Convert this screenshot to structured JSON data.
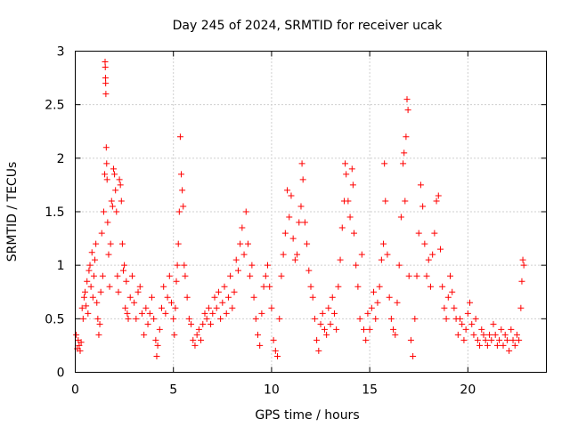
{
  "chart_data": {
    "type": "scatter",
    "title": "Day 245 of 2024, SRMTID for receiver ucak",
    "xlabel": "GPS time / hours",
    "ylabel": "SRMTID / TECUs",
    "xlim": [
      0,
      24
    ],
    "ylim": [
      0,
      3
    ],
    "x_ticks": [
      0,
      5,
      10,
      15,
      20
    ],
    "y_ticks": [
      0,
      0.5,
      1,
      1.5,
      2,
      2.5,
      3
    ],
    "x_tick_labels": [
      "0",
      "5",
      "10",
      "15",
      "20"
    ],
    "y_tick_labels": [
      "0",
      "0.5",
      "1",
      "1.5",
      "2",
      "2.5",
      "3"
    ],
    "grid": true,
    "marker": "+",
    "color": "#ff0000",
    "series": [
      {
        "name": "SRMTID",
        "points": [
          [
            0.05,
            0.35
          ],
          [
            0.1,
            0.22
          ],
          [
            0.15,
            0.3
          ],
          [
            0.2,
            0.25
          ],
          [
            0.25,
            0.2
          ],
          [
            0.3,
            0.28
          ],
          [
            0.35,
            0.6
          ],
          [
            0.4,
            0.5
          ],
          [
            0.45,
            0.7
          ],
          [
            0.5,
            0.75
          ],
          [
            0.55,
            0.62
          ],
          [
            0.6,
            0.85
          ],
          [
            0.65,
            0.55
          ],
          [
            0.7,
            0.95
          ],
          [
            0.75,
            1.0
          ],
          [
            0.8,
            0.8
          ],
          [
            0.85,
            1.12
          ],
          [
            0.9,
            0.7
          ],
          [
            0.95,
            0.9
          ],
          [
            1.0,
            1.05
          ],
          [
            1.05,
            1.2
          ],
          [
            1.1,
            0.65
          ],
          [
            1.15,
            0.5
          ],
          [
            1.2,
            0.35
          ],
          [
            1.25,
            0.45
          ],
          [
            1.3,
            0.75
          ],
          [
            1.35,
            1.3
          ],
          [
            1.4,
            0.9
          ],
          [
            1.45,
            1.5
          ],
          [
            1.5,
            1.85
          ],
          [
            1.52,
            2.9
          ],
          [
            1.53,
            2.85
          ],
          [
            1.54,
            2.75
          ],
          [
            1.55,
            2.7
          ],
          [
            1.56,
            2.6
          ],
          [
            1.58,
            2.1
          ],
          [
            1.6,
            1.95
          ],
          [
            1.62,
            1.8
          ],
          [
            1.65,
            1.4
          ],
          [
            1.7,
            1.1
          ],
          [
            1.75,
            0.8
          ],
          [
            1.8,
            1.2
          ],
          [
            1.85,
            1.6
          ],
          [
            1.9,
            1.55
          ],
          [
            1.95,
            1.9
          ],
          [
            2.0,
            1.85
          ],
          [
            2.05,
            1.7
          ],
          [
            2.1,
            1.5
          ],
          [
            2.15,
            0.9
          ],
          [
            2.2,
            0.75
          ],
          [
            2.25,
            1.8
          ],
          [
            2.3,
            1.75
          ],
          [
            2.35,
            1.6
          ],
          [
            2.4,
            1.2
          ],
          [
            2.45,
            0.95
          ],
          [
            2.5,
            1.0
          ],
          [
            2.55,
            0.6
          ],
          [
            2.6,
            0.85
          ],
          [
            2.65,
            0.55
          ],
          [
            2.7,
            0.5
          ],
          [
            2.8,
            0.7
          ],
          [
            2.9,
            0.9
          ],
          [
            3.0,
            0.65
          ],
          [
            3.1,
            0.5
          ],
          [
            3.2,
            0.75
          ],
          [
            3.3,
            0.8
          ],
          [
            3.4,
            0.55
          ],
          [
            3.5,
            0.35
          ],
          [
            3.6,
            0.6
          ],
          [
            3.7,
            0.45
          ],
          [
            3.8,
            0.55
          ],
          [
            3.9,
            0.7
          ],
          [
            4.0,
            0.5
          ],
          [
            4.1,
            0.3
          ],
          [
            4.15,
            0.15
          ],
          [
            4.2,
            0.25
          ],
          [
            4.3,
            0.4
          ],
          [
            4.4,
            0.6
          ],
          [
            4.5,
            0.8
          ],
          [
            4.6,
            0.55
          ],
          [
            4.7,
            0.7
          ],
          [
            4.8,
            0.9
          ],
          [
            4.9,
            0.65
          ],
          [
            5.0,
            0.5
          ],
          [
            5.05,
            0.35
          ],
          [
            5.1,
            0.6
          ],
          [
            5.15,
            0.85
          ],
          [
            5.2,
            1.0
          ],
          [
            5.25,
            1.2
          ],
          [
            5.3,
            1.5
          ],
          [
            5.35,
            2.2
          ],
          [
            5.4,
            1.85
          ],
          [
            5.45,
            1.7
          ],
          [
            5.5,
            1.55
          ],
          [
            5.55,
            1.0
          ],
          [
            5.6,
            0.9
          ],
          [
            5.7,
            0.7
          ],
          [
            5.8,
            0.5
          ],
          [
            5.9,
            0.45
          ],
          [
            6.0,
            0.3
          ],
          [
            6.1,
            0.25
          ],
          [
            6.2,
            0.35
          ],
          [
            6.3,
            0.4
          ],
          [
            6.4,
            0.3
          ],
          [
            6.5,
            0.45
          ],
          [
            6.6,
            0.55
          ],
          [
            6.7,
            0.5
          ],
          [
            6.8,
            0.6
          ],
          [
            6.9,
            0.45
          ],
          [
            7.0,
            0.55
          ],
          [
            7.1,
            0.7
          ],
          [
            7.2,
            0.6
          ],
          [
            7.3,
            0.75
          ],
          [
            7.4,
            0.5
          ],
          [
            7.5,
            0.65
          ],
          [
            7.6,
            0.8
          ],
          [
            7.7,
            0.55
          ],
          [
            7.8,
            0.7
          ],
          [
            7.9,
            0.9
          ],
          [
            8.0,
            0.6
          ],
          [
            8.1,
            0.75
          ],
          [
            8.2,
            1.05
          ],
          [
            8.3,
            0.95
          ],
          [
            8.4,
            1.2
          ],
          [
            8.5,
            1.35
          ],
          [
            8.6,
            1.1
          ],
          [
            8.7,
            1.5
          ],
          [
            8.8,
            1.2
          ],
          [
            8.9,
            0.9
          ],
          [
            9.0,
            1.0
          ],
          [
            9.1,
            0.7
          ],
          [
            9.2,
            0.5
          ],
          [
            9.3,
            0.35
          ],
          [
            9.4,
            0.25
          ],
          [
            9.5,
            0.55
          ],
          [
            9.6,
            0.8
          ],
          [
            9.7,
            0.9
          ],
          [
            9.8,
            1.0
          ],
          [
            9.9,
            0.8
          ],
          [
            10.0,
            0.6
          ],
          [
            10.1,
            0.3
          ],
          [
            10.2,
            0.2
          ],
          [
            10.3,
            0.15
          ],
          [
            10.4,
            0.5
          ],
          [
            10.5,
            0.9
          ],
          [
            10.6,
            1.1
          ],
          [
            10.7,
            1.3
          ],
          [
            10.8,
            1.7
          ],
          [
            10.9,
            1.45
          ],
          [
            11.0,
            1.65
          ],
          [
            11.1,
            1.25
          ],
          [
            11.2,
            1.05
          ],
          [
            11.3,
            1.1
          ],
          [
            11.4,
            1.4
          ],
          [
            11.5,
            1.55
          ],
          [
            11.55,
            1.95
          ],
          [
            11.6,
            1.8
          ],
          [
            11.7,
            1.4
          ],
          [
            11.8,
            1.2
          ],
          [
            11.9,
            0.95
          ],
          [
            12.0,
            0.8
          ],
          [
            12.1,
            0.7
          ],
          [
            12.2,
            0.5
          ],
          [
            12.3,
            0.3
          ],
          [
            12.4,
            0.2
          ],
          [
            12.5,
            0.45
          ],
          [
            12.6,
            0.55
          ],
          [
            12.7,
            0.4
          ],
          [
            12.8,
            0.35
          ],
          [
            12.9,
            0.6
          ],
          [
            13.0,
            0.45
          ],
          [
            13.1,
            0.7
          ],
          [
            13.2,
            0.55
          ],
          [
            13.3,
            0.4
          ],
          [
            13.4,
            0.8
          ],
          [
            13.5,
            1.05
          ],
          [
            13.6,
            1.35
          ],
          [
            13.7,
            1.6
          ],
          [
            13.75,
            1.95
          ],
          [
            13.8,
            1.85
          ],
          [
            13.9,
            1.6
          ],
          [
            14.0,
            1.45
          ],
          [
            14.1,
            1.9
          ],
          [
            14.15,
            1.75
          ],
          [
            14.2,
            1.3
          ],
          [
            14.3,
            1.0
          ],
          [
            14.4,
            0.8
          ],
          [
            14.5,
            0.5
          ],
          [
            14.6,
            1.1
          ],
          [
            14.7,
            0.4
          ],
          [
            14.8,
            0.3
          ],
          [
            14.9,
            0.55
          ],
          [
            15.0,
            0.4
          ],
          [
            15.1,
            0.6
          ],
          [
            15.2,
            0.75
          ],
          [
            15.3,
            0.5
          ],
          [
            15.4,
            0.65
          ],
          [
            15.5,
            0.8
          ],
          [
            15.6,
            1.05
          ],
          [
            15.7,
            1.2
          ],
          [
            15.75,
            1.95
          ],
          [
            15.8,
            1.6
          ],
          [
            15.9,
            1.1
          ],
          [
            16.0,
            0.7
          ],
          [
            16.1,
            0.5
          ],
          [
            16.2,
            0.4
          ],
          [
            16.3,
            0.35
          ],
          [
            16.4,
            0.65
          ],
          [
            16.5,
            1.0
          ],
          [
            16.6,
            1.45
          ],
          [
            16.7,
            1.95
          ],
          [
            16.75,
            2.05
          ],
          [
            16.8,
            1.6
          ],
          [
            16.85,
            2.2
          ],
          [
            16.9,
            2.55
          ],
          [
            16.95,
            2.45
          ],
          [
            17.0,
            0.9
          ],
          [
            17.1,
            0.3
          ],
          [
            17.2,
            0.15
          ],
          [
            17.3,
            0.5
          ],
          [
            17.4,
            0.9
          ],
          [
            17.5,
            1.3
          ],
          [
            17.6,
            1.75
          ],
          [
            17.7,
            1.55
          ],
          [
            17.8,
            1.2
          ],
          [
            17.9,
            0.9
          ],
          [
            18.0,
            1.05
          ],
          [
            18.1,
            0.8
          ],
          [
            18.2,
            1.1
          ],
          [
            18.3,
            1.3
          ],
          [
            18.4,
            1.6
          ],
          [
            18.5,
            1.65
          ],
          [
            18.6,
            1.15
          ],
          [
            18.7,
            0.8
          ],
          [
            18.8,
            0.6
          ],
          [
            18.9,
            0.5
          ],
          [
            19.0,
            0.7
          ],
          [
            19.1,
            0.9
          ],
          [
            19.2,
            0.75
          ],
          [
            19.3,
            0.6
          ],
          [
            19.4,
            0.5
          ],
          [
            19.5,
            0.35
          ],
          [
            19.6,
            0.5
          ],
          [
            19.7,
            0.45
          ],
          [
            19.8,
            0.3
          ],
          [
            19.9,
            0.4
          ],
          [
            20.0,
            0.55
          ],
          [
            20.1,
            0.65
          ],
          [
            20.2,
            0.45
          ],
          [
            20.3,
            0.35
          ],
          [
            20.4,
            0.5
          ],
          [
            20.5,
            0.3
          ],
          [
            20.6,
            0.25
          ],
          [
            20.7,
            0.4
          ],
          [
            20.8,
            0.35
          ],
          [
            20.9,
            0.3
          ],
          [
            21.0,
            0.25
          ],
          [
            21.1,
            0.35
          ],
          [
            21.2,
            0.3
          ],
          [
            21.3,
            0.45
          ],
          [
            21.4,
            0.35
          ],
          [
            21.5,
            0.25
          ],
          [
            21.6,
            0.3
          ],
          [
            21.7,
            0.4
          ],
          [
            21.8,
            0.25
          ],
          [
            21.9,
            0.35
          ],
          [
            22.0,
            0.3
          ],
          [
            22.1,
            0.2
          ],
          [
            22.2,
            0.4
          ],
          [
            22.3,
            0.3
          ],
          [
            22.4,
            0.25
          ],
          [
            22.5,
            0.35
          ],
          [
            22.6,
            0.3
          ],
          [
            22.7,
            0.6
          ],
          [
            22.75,
            0.85
          ],
          [
            22.8,
            1.05
          ],
          [
            22.85,
            1.0
          ]
        ]
      }
    ]
  }
}
